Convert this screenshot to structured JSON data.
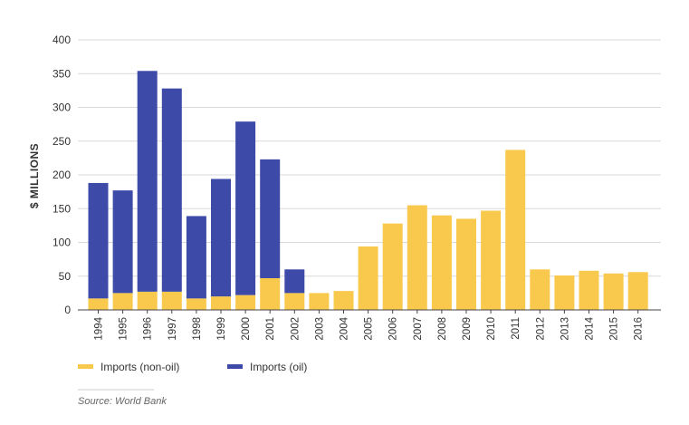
{
  "chart_data": {
    "type": "bar",
    "stacked": true,
    "title": "",
    "xlabel": "",
    "ylabel": "$ MILLIONS",
    "ylim": [
      0,
      400
    ],
    "yticks": [
      0,
      50,
      100,
      150,
      200,
      250,
      300,
      350,
      400
    ],
    "grid": true,
    "categories": [
      "1994",
      "1995",
      "1996",
      "1997",
      "1998",
      "1999",
      "2000",
      "2001",
      "2002",
      "2003",
      "2004",
      "2005",
      "2006",
      "2007",
      "2008",
      "2009",
      "2010",
      "2011",
      "2012",
      "2013",
      "2014",
      "2015",
      "2016"
    ],
    "series": [
      {
        "name": "Imports (non-oil)",
        "color": "#f9c94e",
        "values": [
          17,
          25,
          27,
          27,
          17,
          20,
          22,
          47,
          25,
          25,
          28,
          94,
          128,
          155,
          140,
          135,
          147,
          237,
          60,
          51,
          58,
          54,
          56
        ]
      },
      {
        "name": "Imports (oil)",
        "color": "#3d4aa8",
        "values": [
          171,
          152,
          327,
          301,
          122,
          174,
          257,
          176,
          35,
          0,
          0,
          0,
          0,
          0,
          0,
          0,
          0,
          0,
          0,
          0,
          0,
          0,
          0
        ]
      }
    ],
    "legend_position": "bottom-left"
  },
  "source": "Source: World Bank"
}
